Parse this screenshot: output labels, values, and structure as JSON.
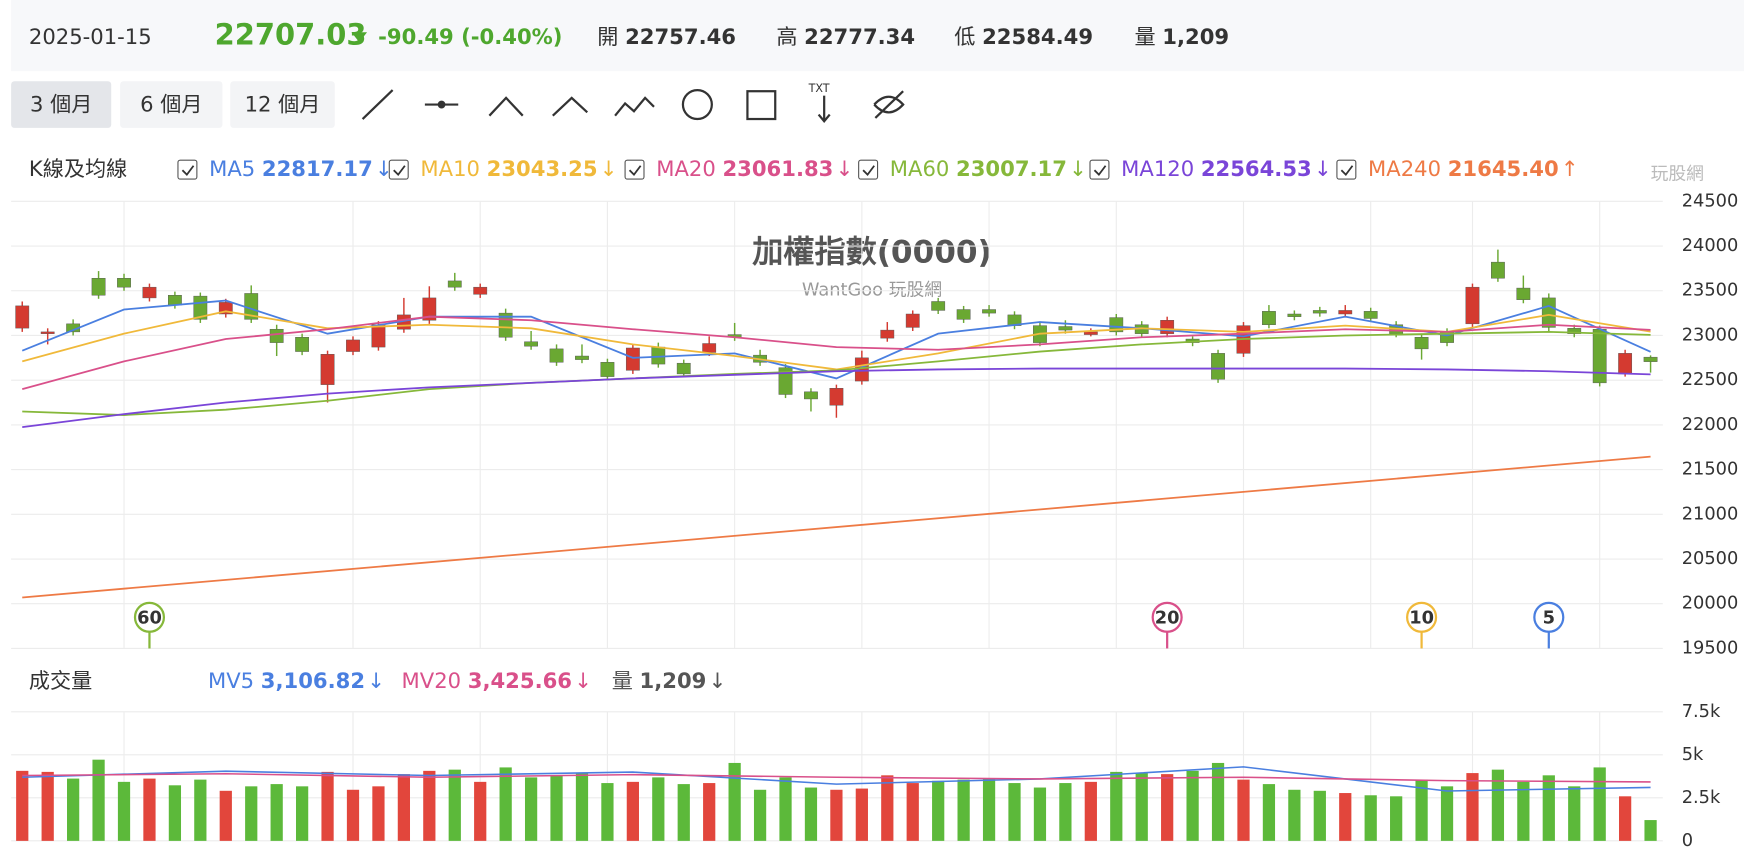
{
  "header": {
    "date": "2025-01-15",
    "price": "22707.03",
    "change": "-90.49 (-0.40%)",
    "stats": [
      {
        "label": "開",
        "value": "22757.46"
      },
      {
        "label": "高",
        "value": "22777.34"
      },
      {
        "label": "低",
        "value": "22584.49"
      },
      {
        "label": "量",
        "value": "1,209"
      }
    ]
  },
  "buttons": [
    "3 個月",
    "6 個月",
    "12 個月"
  ],
  "logo": "玩股網",
  "chart_data": {
    "type": "candlestick",
    "title": "加權指數(0000)",
    "subtitle": "WantGoo 玩股網",
    "panel_label": "K線及均線",
    "up_color": "#d43a30",
    "down_color": "#6aa832",
    "open": [
      23082,
      23020,
      23130,
      23640,
      23640,
      23420,
      23450,
      23440,
      23240,
      23470,
      23070,
      22980,
      22450,
      22820,
      22870,
      23070,
      23170,
      23610,
      23460,
      23250,
      22930,
      22850,
      22770,
      22700,
      22610,
      22870,
      22690,
      22810,
      23010,
      22780,
      22640,
      22370,
      22220,
      22490,
      22970,
      23090,
      23380,
      23290,
      23290,
      23230,
      23110,
      23100,
      23010,
      23200,
      23120,
      23020,
      22960,
      22800,
      22800,
      23270,
      23240,
      23280,
      23240,
      23270,
      23120,
      22980,
      23040,
      23130,
      23820,
      23530,
      23420,
      23080,
      23070,
      22570,
      22757.46
    ],
    "high": [
      23380,
      23080,
      23180,
      23720,
      23690,
      23580,
      23490,
      23480,
      23410,
      23560,
      23120,
      23020,
      22830,
      22990,
      23160,
      23420,
      23550,
      23700,
      23580,
      23300,
      23050,
      22900,
      22900,
      22740,
      22900,
      22920,
      22730,
      22990,
      23140,
      22840,
      22680,
      22410,
      22450,
      22830,
      23150,
      23280,
      23420,
      23330,
      23340,
      23270,
      23150,
      23170,
      23080,
      23240,
      23160,
      23210,
      22990,
      22840,
      23150,
      23340,
      23280,
      23320,
      23340,
      23310,
      23160,
      23020,
      23080,
      23580,
      23960,
      23670,
      23470,
      23120,
      23110,
      22840,
      22777.34
    ],
    "low": [
      23040,
      22900,
      23000,
      23410,
      23500,
      23380,
      23300,
      23140,
      23200,
      23140,
      22770,
      22780,
      22250,
      22780,
      22830,
      23030,
      23130,
      23500,
      23420,
      22940,
      22840,
      22660,
      22690,
      22500,
      22570,
      22640,
      22530,
      22770,
      22940,
      22660,
      22300,
      22150,
      22080,
      22450,
      22930,
      23050,
      23240,
      23140,
      23210,
      23070,
      22880,
      23020,
      22990,
      23000,
      22980,
      22980,
      22880,
      22470,
      22760,
      23080,
      23170,
      23210,
      23200,
      23150,
      22980,
      22730,
      22880,
      23090,
      23600,
      23360,
      23050,
      22980,
      22430,
      22540,
      22584.49
    ],
    "close": [
      23331,
      23040,
      23040,
      23450,
      23540,
      23540,
      23340,
      23180,
      23370,
      23180,
      22920,
      22820,
      22790,
      22950,
      23120,
      23230,
      23420,
      23540,
      23540,
      22980,
      22880,
      22700,
      22730,
      22540,
      22860,
      22680,
      22570,
      22910,
      22980,
      22700,
      22340,
      22290,
      22410,
      22750,
      23060,
      23240,
      23280,
      23180,
      23250,
      23110,
      22920,
      23060,
      23040,
      23040,
      23020,
      23170,
      22920,
      22510,
      23110,
      23120,
      23210,
      23250,
      23280,
      23190,
      23020,
      22850,
      22920,
      23540,
      23640,
      23400,
      23090,
      23020,
      22470,
      22800,
      22707.03
    ],
    "ylim": [
      19500,
      24500
    ],
    "yticks": [
      24500,
      24000,
      23500,
      23000,
      22500,
      22000,
      21500,
      21000,
      20500,
      20000,
      19500
    ],
    "vgrid": [
      4,
      13,
      18,
      23,
      28,
      33,
      38,
      43,
      48,
      53,
      57,
      62
    ],
    "series": [
      {
        "name": "MA5",
        "color": "#4a7fe0",
        "legend_value": "22817.17",
        "arrow": "↓",
        "x": [
          0,
          4,
          8,
          12,
          16,
          20,
          24,
          28,
          32,
          36,
          40,
          44,
          48,
          52,
          56,
          60,
          64
        ],
        "values": [
          22830,
          23290,
          23390,
          23020,
          23210,
          23210,
          22750,
          22800,
          22520,
          23020,
          23150,
          23080,
          22990,
          23210,
          23000,
          23330,
          22817
        ]
      },
      {
        "name": "MA10",
        "color": "#f0b93a",
        "legend_value": "23043.25",
        "arrow": "↓",
        "x": [
          0,
          4,
          8,
          12,
          16,
          20,
          24,
          28,
          32,
          36,
          40,
          44,
          48,
          52,
          56,
          60,
          64
        ],
        "values": [
          22710,
          23020,
          23270,
          23080,
          23120,
          23080,
          22900,
          22770,
          22620,
          22800,
          23020,
          23080,
          23040,
          23110,
          23040,
          23230,
          23043
        ]
      },
      {
        "name": "MA20",
        "color": "#d9508a",
        "legend_value": "23061.83",
        "arrow": "↓",
        "x": [
          0,
          4,
          8,
          12,
          16,
          20,
          24,
          28,
          32,
          36,
          40,
          44,
          48,
          52,
          56,
          60,
          64
        ],
        "values": [
          22400,
          22710,
          22960,
          23070,
          23210,
          23170,
          23070,
          22980,
          22870,
          22840,
          22900,
          22980,
          23020,
          23070,
          23040,
          23120,
          23062
        ]
      },
      {
        "name": "MA60",
        "color": "#86b83a",
        "legend_value": "23007.17",
        "arrow": "↓",
        "x": [
          0,
          4,
          8,
          12,
          16,
          20,
          24,
          28,
          32,
          36,
          40,
          44,
          48,
          52,
          56,
          60,
          64
        ],
        "values": [
          22150,
          22110,
          22170,
          22270,
          22400,
          22470,
          22520,
          22570,
          22610,
          22710,
          22820,
          22900,
          22960,
          23000,
          23020,
          23040,
          23007
        ]
      },
      {
        "name": "MA120",
        "color": "#7a45d8",
        "legend_value": "22564.53",
        "arrow": "↓",
        "x": [
          0,
          4,
          8,
          12,
          16,
          20,
          24,
          28,
          32,
          36,
          40,
          44,
          48,
          52,
          56,
          60,
          64
        ],
        "values": [
          21975,
          22120,
          22250,
          22350,
          22420,
          22470,
          22520,
          22560,
          22600,
          22620,
          22630,
          22630,
          22630,
          22630,
          22620,
          22600,
          22565
        ]
      },
      {
        "name": "MA240",
        "color": "#ee7a45",
        "legend_value": "21645.40",
        "arrow": "↑",
        "x": [
          0,
          64
        ],
        "values": [
          20070,
          21645
        ]
      }
    ],
    "markers": [
      {
        "label": "60",
        "index": 5,
        "color": "#86b83a"
      },
      {
        "label": "20",
        "index": 45,
        "color": "#d9508a"
      },
      {
        "label": "10",
        "index": 55,
        "color": "#f0b93a"
      },
      {
        "label": "5",
        "index": 60,
        "color": "#4a7fe0"
      }
    ]
  },
  "volume_chart": {
    "type": "bar",
    "panel_label": "成交量",
    "values": [
      4070,
      4010,
      3620,
      4720,
      3430,
      3620,
      3230,
      3560,
      2910,
      3170,
      3300,
      3170,
      4010,
      2970,
      3170,
      3880,
      4070,
      4140,
      3430,
      4270,
      3690,
      3810,
      3940,
      3360,
      3430,
      3690,
      3300,
      3360,
      4530,
      2970,
      3690,
      3100,
      2970,
      3040,
      3810,
      3360,
      3490,
      3560,
      3620,
      3360,
      3100,
      3360,
      3430,
      4010,
      3940,
      3880,
      4070,
      4530,
      3560,
      3300,
      2970,
      2910,
      2780,
      2650,
      2590,
      3560,
      3170,
      3940,
      4140,
      3430,
      3810,
      3170,
      4270,
      2590,
      1209
    ],
    "ylim": [
      0,
      7500
    ],
    "yticks": [
      {
        "value": 7500,
        "label": "7.5k"
      },
      {
        "value": 5000,
        "label": "5k"
      },
      {
        "value": 2500,
        "label": "2.5k"
      },
      0
    ],
    "series": [
      {
        "name": "MV5",
        "color": "#4a7fe0",
        "legend_value": "3,106.82",
        "arrow": "↓",
        "x": [
          0,
          8,
          16,
          24,
          32,
          40,
          48,
          56,
          64
        ],
        "values": [
          3700,
          4050,
          3800,
          4000,
          3300,
          3600,
          4300,
          2900,
          3107
        ]
      },
      {
        "name": "MV20",
        "color": "#d9508a",
        "legend_value": "3,425.66",
        "arrow": "↓",
        "x": [
          0,
          8,
          16,
          24,
          32,
          40,
          48,
          56,
          64
        ],
        "values": [
          3800,
          3900,
          3700,
          3850,
          3700,
          3600,
          3700,
          3500,
          3426
        ]
      }
    ],
    "volume_legend": {
      "name": "量",
      "value": "1,209",
      "arrow": "↓"
    }
  }
}
